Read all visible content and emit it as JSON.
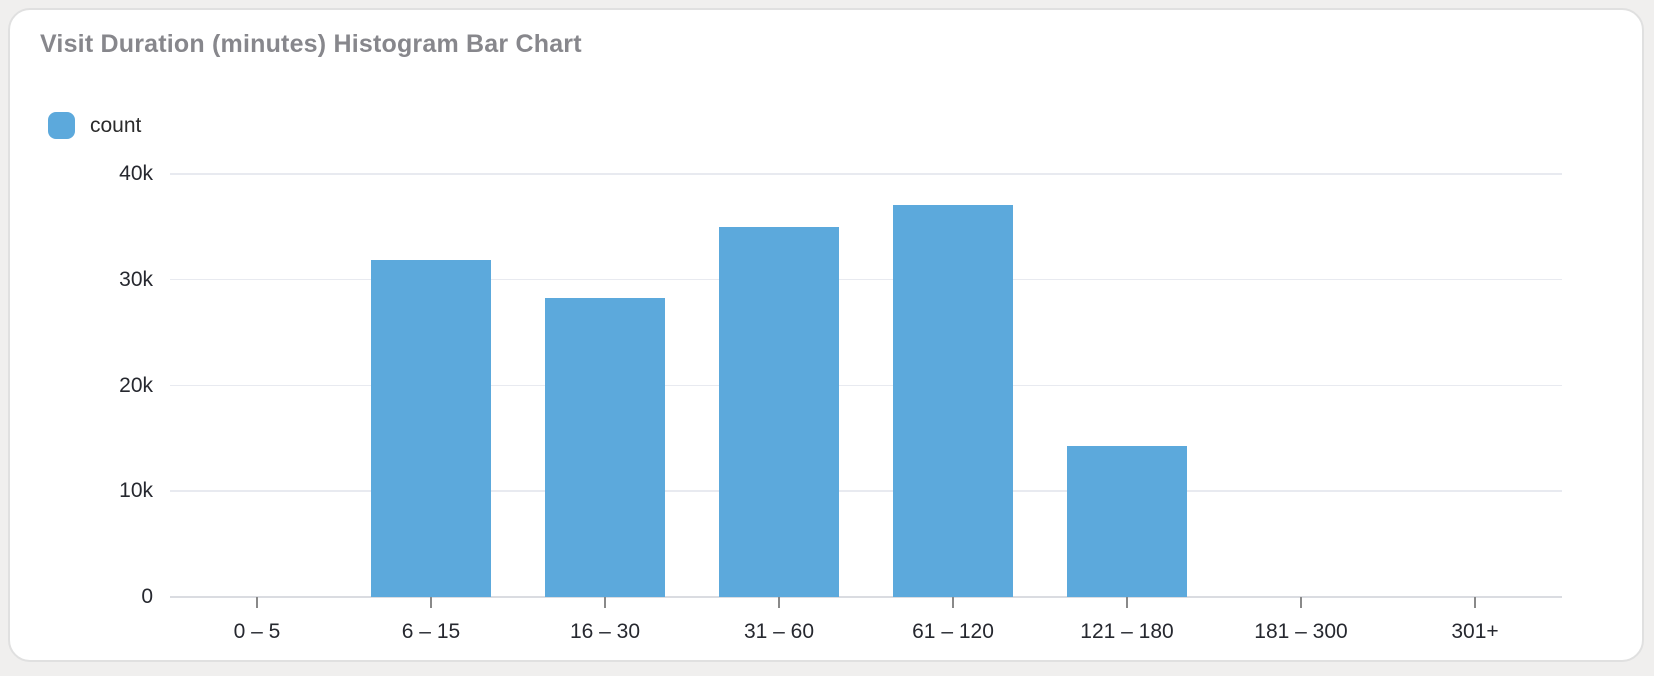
{
  "page": {
    "background_color": "#f0efee",
    "card_background": "#ffffff",
    "card_border_color": "#e0e0e0"
  },
  "header": {
    "title": "Visit Duration (minutes) Histogram Bar Chart",
    "title_color": "#87878c"
  },
  "legend": {
    "items": [
      {
        "label": "count",
        "color": "#5ca9dc"
      }
    ]
  },
  "chart_data": {
    "type": "bar",
    "title": "Visit Duration (minutes) Histogram Bar Chart",
    "categories": [
      "0 – 5",
      "6 – 15",
      "16 – 30",
      "31 – 60",
      "61 – 120",
      "121 – 180",
      "181 – 300",
      "301+"
    ],
    "series": [
      {
        "name": "count",
        "values": [
          0,
          31900,
          28300,
          35000,
          37100,
          14300,
          0,
          0
        ],
        "color": "#5ca9dc"
      }
    ],
    "xlabel": "",
    "ylabel": "",
    "ylim": [
      0,
      40000
    ],
    "yticks": [
      0,
      10000,
      20000,
      30000,
      40000
    ],
    "ytick_labels": [
      "0",
      "10k",
      "20k",
      "30k",
      "40k"
    ],
    "grid": true,
    "legend_position": "top-left",
    "bar_fraction_of_band": 0.69,
    "colors": {
      "gridline": "#e8eaf0",
      "axis_line": "#dadce1",
      "tick": "#898989",
      "axis_text": "#26282f"
    }
  }
}
